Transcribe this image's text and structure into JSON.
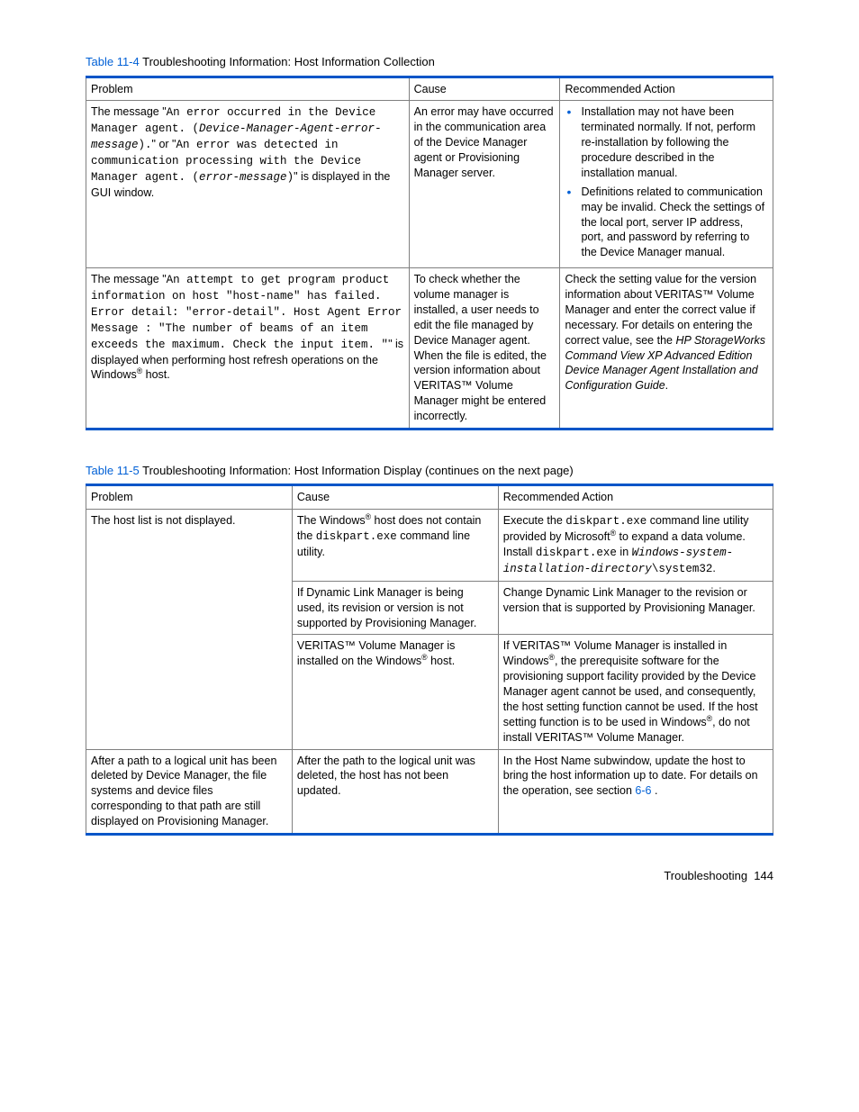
{
  "table1": {
    "caption_link": "Table 11-4",
    "caption_rest": " Troubleshooting Information: Host Information Collection",
    "headers": [
      "Problem",
      "Cause",
      "Recommended Action"
    ]
  },
  "t1r1": {
    "p_lead": "The message \"",
    "p_code1": "An error occurred in the Device Manager agent. (",
    "p_ital1": "Device-Manager-Agent-error-message",
    "p_code1b": ").",
    "p_mid": "\" or \"",
    "p_code2": "An error was detected in communication processing with the Device Manager agent. (",
    "p_ital2": "error-message",
    "p_code2b": ")",
    "p_tail": "\" is displayed in the GUI window.",
    "cause": "An error may have occurred in the communication area of the Device Manager agent or Provisioning Manager server.",
    "act1": "Installation may not have been terminated normally. If not, perform re-installation by following the procedure described in the installation manual.",
    "act2": "Definitions related to communication may be invalid. Check the settings of the local port, server IP address, port, and password by referring to the Device Manager manual."
  },
  "t1r2": {
    "p_lead": "The message \"",
    "p_code": "An attempt to get program product information on host \"host-name\" has failed. Error detail: \"error-detail\". Host Agent Error Message : \"The number of beams of an item exceeds the maximum. Check the input item. \"",
    "p_mid": "\" is displayed when performing host refresh operations on the Windows",
    "p_tail": " host.",
    "cause": "To check whether the volume manager is installed, a user needs to edit the file managed by Device Manager agent.\nWhen the file is edited, the version information about VERITAS™ Volume Manager might be entered incorrectly.",
    "act_pre": "Check the setting value for the version information about VERITAS™ Volume Manager and enter the correct value if necessary. For details on entering the correct value, see the ",
    "act_ital": "HP StorageWorks Command View XP Advanced Edition Device Manager Agent Installation and Configuration Guide",
    "act_post": "."
  },
  "table2": {
    "caption_link": "Table 11-5",
    "caption_rest": " Troubleshooting Information: Host Information Display (continues on the next page)",
    "headers": [
      "Problem",
      "Cause",
      "Recommended Action"
    ]
  },
  "t2r1": {
    "problem": "The host list is not displayed.",
    "c_pre": "The Windows",
    "c_mid": " host does not contain the ",
    "c_code": "diskpart.exe",
    "c_post": " command line utility.",
    "a_pre": "Execute the ",
    "a_code1": "diskpart.exe",
    "a_mid1": " command line utility provided by Microsoft",
    "a_mid2": " to expand a data volume. Install ",
    "a_code2": "diskpart.exe",
    "a_mid3": " in ",
    "a_ital": "Windows-system-installation-directory",
    "a_code3": "\\system32",
    "a_post": "."
  },
  "t2r2": {
    "cause": "If Dynamic Link Manager is being used, its revision or version is not supported by Provisioning Manager.",
    "action": "Change Dynamic Link Manager to the revision or version that is supported by Provisioning Manager."
  },
  "t2r3": {
    "c_pre": "VERITAS™ Volume Manager is installed on the Windows",
    "c_post": " host.",
    "a_pre": "If VERITAS™ Volume Manager is installed in Windows",
    "a_mid": ", the prerequisite software for the provisioning support facility provided by the Device Manager agent cannot be used, and consequently, the host setting function cannot be used. If the host setting function is to be used in Windows",
    "a_post": ", do not install VERITAS™ Volume Manager."
  },
  "t2r4": {
    "problem": "After a path to a logical unit has been deleted by Device Manager, the file systems and device files corresponding to that path are still displayed on Provisioning Manager.",
    "cause": "After the path to the logical unit was deleted, the host has not been updated.",
    "a_pre": "In the Host Name subwindow, update the host to bring the host information up to date. For details on the operation, see section ",
    "a_link": "6-6 ",
    "a_post": "."
  },
  "footer": {
    "label": "Troubleshooting",
    "page": "144"
  }
}
